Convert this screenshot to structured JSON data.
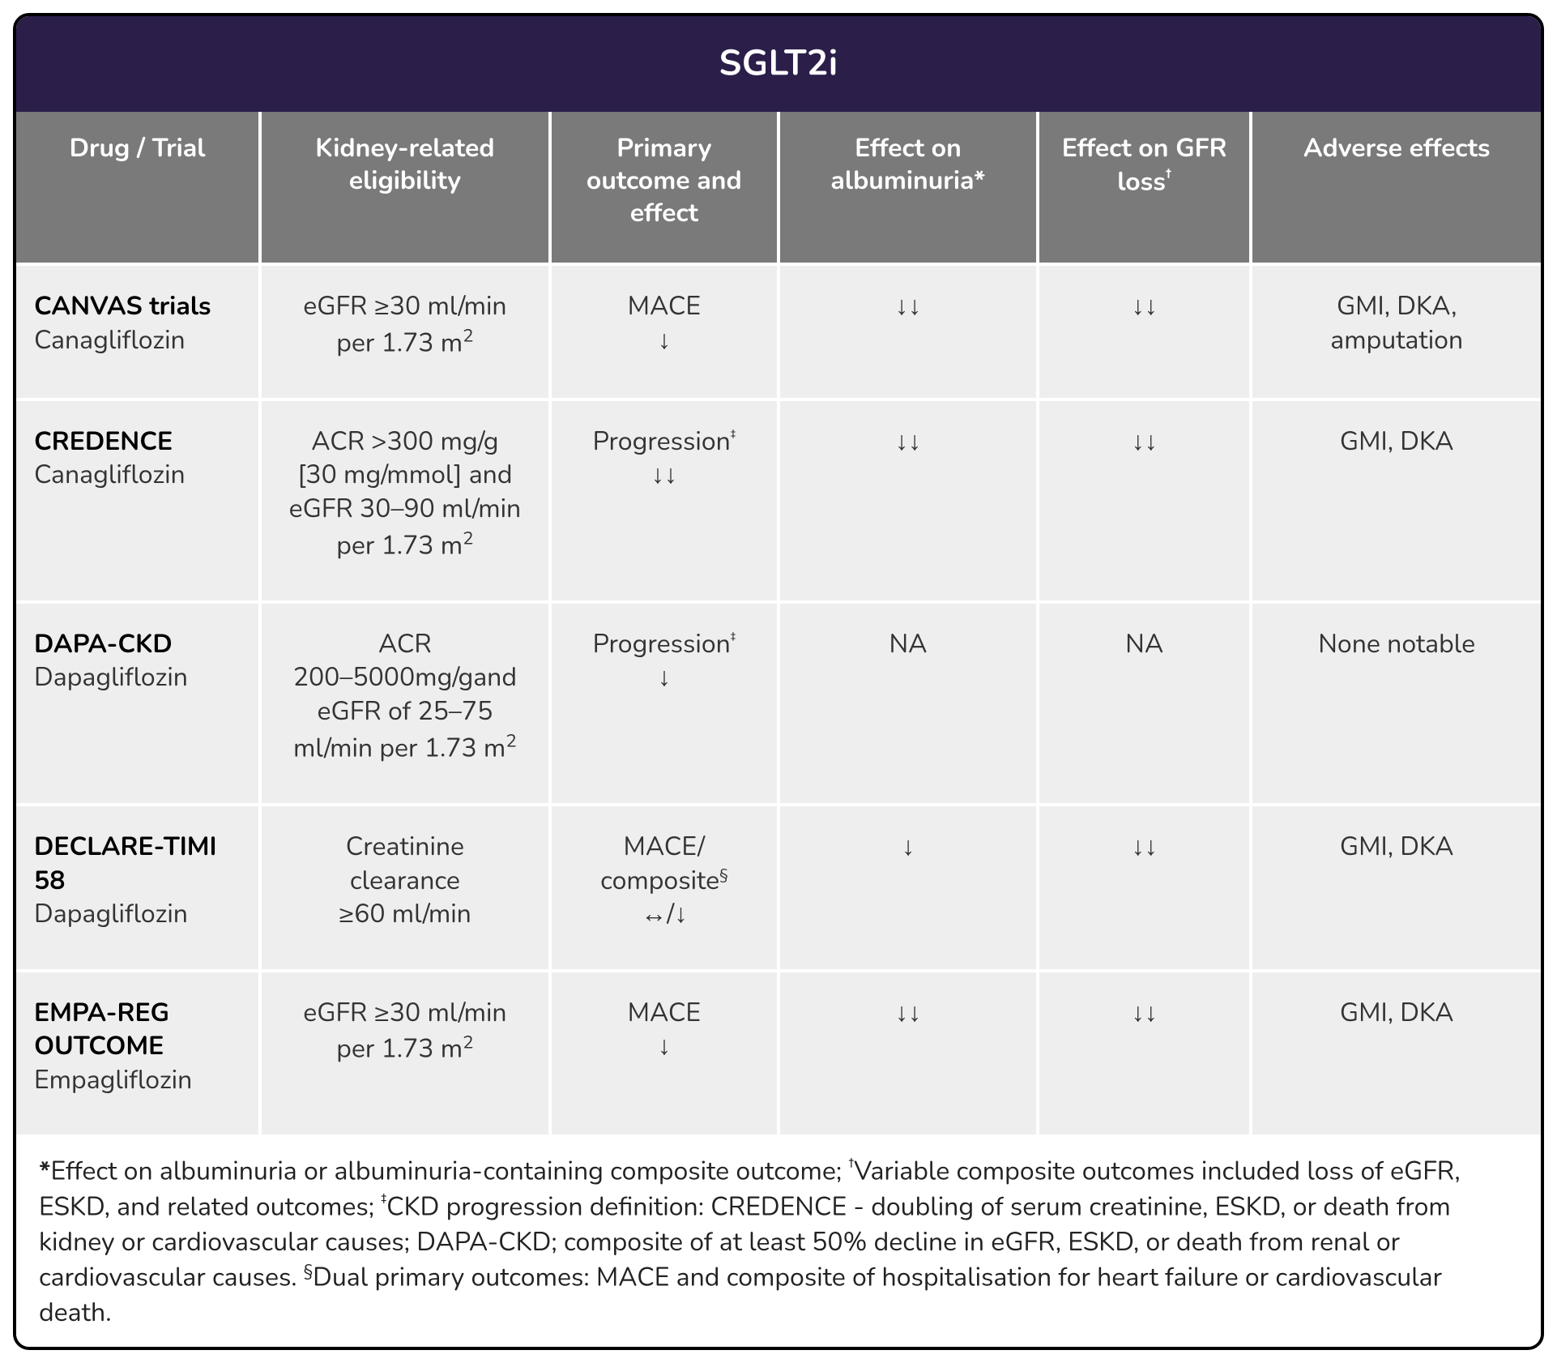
{
  "title": "SGLT2i",
  "columns": [
    {
      "key": "drug_trial",
      "label": "Drug / Trial"
    },
    {
      "key": "eligibility",
      "label": "Kidney-related eligibility"
    },
    {
      "key": "primary",
      "label": "Primary outcome and effect"
    },
    {
      "key": "albuminuria",
      "label_html": "Effect on albuminuria*"
    },
    {
      "key": "gfr",
      "label_html": "Effect on GFR loss<sup>†</sup>"
    },
    {
      "key": "adverse",
      "label": "Adverse effects"
    }
  ],
  "rows": [
    {
      "trial": "CANVAS trials",
      "drug": "Canagliflozin",
      "eligibility_html": "eGFR ≥30 ml/min<br>per 1.73 m<span class='m2'><sup>2</sup></span>",
      "primary_html": "MACE<br>↓",
      "albuminuria": "↓↓",
      "gfr": "↓↓",
      "adverse_html": "GMI, DKA,<br>amputation"
    },
    {
      "trial": "CREDENCE",
      "drug": "Canagliflozin",
      "eligibility_html": "ACR >300 mg/g<br>[30 mg/mmol] and<br>eGFR 30–90 ml/min<br>per 1.73 m<span class='m2'><sup>2</sup></span>",
      "primary_html": "Progression<sup>‡</sup><br>↓↓",
      "albuminuria": "↓↓",
      "gfr": "↓↓",
      "adverse_html": "GMI, DKA"
    },
    {
      "trial": "DAPA-CKD",
      "drug": "Dapagliflozin",
      "eligibility_html": "ACR<br>200–5000mg/gand<br>eGFR of 25–75<br>ml/min per 1.73 m<span class='m2'><sup>2</sup></span>",
      "primary_html": "Progression<sup>‡</sup><br>↓",
      "albuminuria": "NA",
      "gfr": "NA",
      "adverse_html": "None notable"
    },
    {
      "trial": "DECLARE-TIMI 58",
      "drug": "Dapagliflozin",
      "eligibility_html": "Creatinine<br>clearance<br>≥60 ml/min",
      "primary_html": "MACE/<br>composite<sup>§</sup><br>↔/↓",
      "albuminuria": "↓",
      "gfr": "↓↓",
      "adverse_html": "GMI, DKA"
    },
    {
      "trial": "EMPA-REG OUTCOME",
      "drug": "Empagliflozin",
      "eligibility_html": "eGFR ≥30 ml/min<br>per 1.73 m<span class='m2'><sup>2</sup></span>",
      "primary_html": "MACE<br>↓",
      "albuminuria": "↓↓",
      "gfr": "↓↓",
      "adverse_html": "GMI, DKA"
    }
  ],
  "footnote_html": "<span class='bold-sym'>*</span>Effect on albuminuria or albuminuria-containing composite outcome; <sup>†</sup>Variable composite outcomes included loss of eGFR, ESKD, and related outcomes; <sup>‡</sup>CKD progression definition: CREDENCE - doubling of serum creatinine, ESKD, or death from kidney or cardiovascular causes; DAPA-CKD; composite of at least 50% decline in eGFR, ESKD, or death from renal or cardiovascular causes. <sup>§</sup>Dual primary outcomes: MACE and composite of hospitalisation for heart failure or cardiovascular death."
}
